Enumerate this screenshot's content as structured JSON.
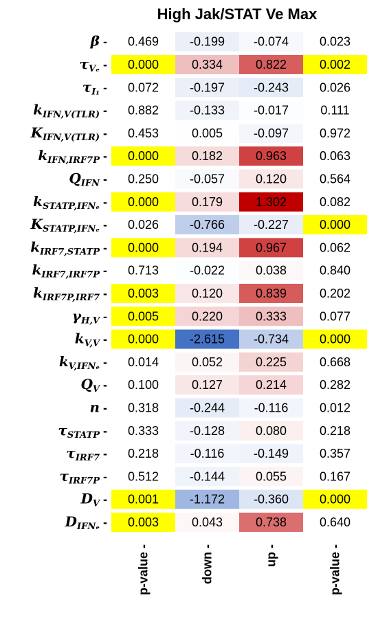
{
  "chart_data": {
    "type": "heatmap",
    "title": "High Jak/STAT Ve Max",
    "columns": [
      "p-value",
      "down",
      "up",
      "p-value"
    ],
    "rows": [
      {
        "label": "β",
        "sub": "",
        "values": [
          0.469,
          -0.199,
          -0.074,
          0.023
        ],
        "text": [
          "0.469",
          "-0.199",
          "-0.074",
          "0.023"
        ]
      },
      {
        "label": "τ",
        "sub": "Vₑ",
        "values": [
          0.0,
          0.334,
          0.822,
          0.002
        ],
        "text": [
          "0.000",
          "0.334",
          "0.822",
          "0.002"
        ]
      },
      {
        "label": "τ",
        "sub": "I₁",
        "values": [
          0.072,
          -0.197,
          -0.243,
          0.026
        ],
        "text": [
          "0.072",
          "-0.197",
          "-0.243",
          "0.026"
        ]
      },
      {
        "label": "k",
        "sub": "IFN,V(TLR)",
        "values": [
          0.882,
          -0.133,
          -0.017,
          0.111
        ],
        "text": [
          "0.882",
          "-0.133",
          "-0.017",
          "0.111"
        ]
      },
      {
        "label": "K",
        "sub": "IFN,V(TLR)",
        "values": [
          0.453,
          0.005,
          -0.097,
          0.972
        ],
        "text": [
          "0.453",
          "0.005",
          "-0.097",
          "0.972"
        ]
      },
      {
        "label": "k",
        "sub": "IFN,IRF7P",
        "values": [
          0.0,
          0.182,
          0.963,
          0.063
        ],
        "text": [
          "0.000",
          "0.182",
          "0.963",
          "0.063"
        ]
      },
      {
        "label": "Q",
        "sub": "IFN",
        "values": [
          0.25,
          -0.057,
          0.12,
          0.564
        ],
        "text": [
          "0.250",
          "-0.057",
          "0.120",
          "0.564"
        ]
      },
      {
        "label": "k",
        "sub": "STATP,IFNₑ",
        "values": [
          0.0,
          0.179,
          1.302,
          0.082
        ],
        "text": [
          "0.000",
          "0.179",
          "1.302",
          "0.082"
        ]
      },
      {
        "label": "K",
        "sub": "STATP,IFNₑ",
        "values": [
          0.026,
          -0.766,
          -0.227,
          0.0
        ],
        "text": [
          "0.026",
          "-0.766",
          "-0.227",
          "0.000"
        ]
      },
      {
        "label": "k",
        "sub": "IRF7,STATP",
        "values": [
          0.0,
          0.194,
          0.967,
          0.062
        ],
        "text": [
          "0.000",
          "0.194",
          "0.967",
          "0.062"
        ]
      },
      {
        "label": "k",
        "sub": "IRF7,IRF7P",
        "values": [
          0.713,
          -0.022,
          0.038,
          0.84
        ],
        "text": [
          "0.713",
          "-0.022",
          "0.038",
          "0.840"
        ]
      },
      {
        "label": "k",
        "sub": "IRF7P,IRF7",
        "values": [
          0.003,
          0.12,
          0.839,
          0.202
        ],
        "text": [
          "0.003",
          "0.120",
          "0.839",
          "0.202"
        ]
      },
      {
        "label": "γ",
        "sub": "H,V",
        "values": [
          0.005,
          0.22,
          0.333,
          0.077
        ],
        "text": [
          "0.005",
          "0.220",
          "0.333",
          "0.077"
        ]
      },
      {
        "label": "k",
        "sub": "V,V",
        "values": [
          0.0,
          -2.615,
          -0.734,
          0.0
        ],
        "text": [
          "0.000",
          "-2.615",
          "-0.734",
          "0.000"
        ]
      },
      {
        "label": "k",
        "sub": "V,IFNₑ",
        "values": [
          0.014,
          0.052,
          0.225,
          0.668
        ],
        "text": [
          "0.014",
          "0.052",
          "0.225",
          "0.668"
        ]
      },
      {
        "label": "Q",
        "sub": "V",
        "values": [
          0.1,
          0.127,
          0.214,
          0.282
        ],
        "text": [
          "0.100",
          "0.127",
          "0.214",
          "0.282"
        ]
      },
      {
        "label": "n",
        "sub": "",
        "values": [
          0.318,
          -0.244,
          -0.116,
          0.012
        ],
        "text": [
          "0.318",
          "-0.244",
          "-0.116",
          "0.012"
        ]
      },
      {
        "label": "τ",
        "sub": "STATP",
        "values": [
          0.333,
          -0.128,
          0.08,
          0.218
        ],
        "text": [
          "0.333",
          "-0.128",
          "0.080",
          "0.218"
        ]
      },
      {
        "label": "τ",
        "sub": "IRF7",
        "values": [
          0.218,
          -0.116,
          -0.149,
          0.357
        ],
        "text": [
          "0.218",
          "-0.116",
          "-0.149",
          "0.357"
        ]
      },
      {
        "label": "τ",
        "sub": "IRF7P",
        "values": [
          0.512,
          -0.144,
          0.055,
          0.167
        ],
        "text": [
          "0.512",
          "-0.144",
          "0.055",
          "0.167"
        ]
      },
      {
        "label": "D",
        "sub": "V",
        "values": [
          0.001,
          -1.172,
          -0.36,
          0.0
        ],
        "text": [
          "0.001",
          "-1.172",
          "-0.360",
          "0.000"
        ]
      },
      {
        "label": "D",
        "sub": "IFNₑ",
        "values": [
          0.003,
          0.043,
          0.738,
          0.64
        ],
        "text": [
          "0.003",
          "0.043",
          "0.738",
          "0.640"
        ]
      }
    ],
    "colors": {
      "significant_highlight": "#ffff00",
      "positive": "#c00000",
      "negative": "#4472c4",
      "neutral": "#ffffff"
    },
    "significance_threshold": 0.01,
    "color_scale_max_abs": 1.302,
    "negative_scale_max_abs": 2.615
  }
}
